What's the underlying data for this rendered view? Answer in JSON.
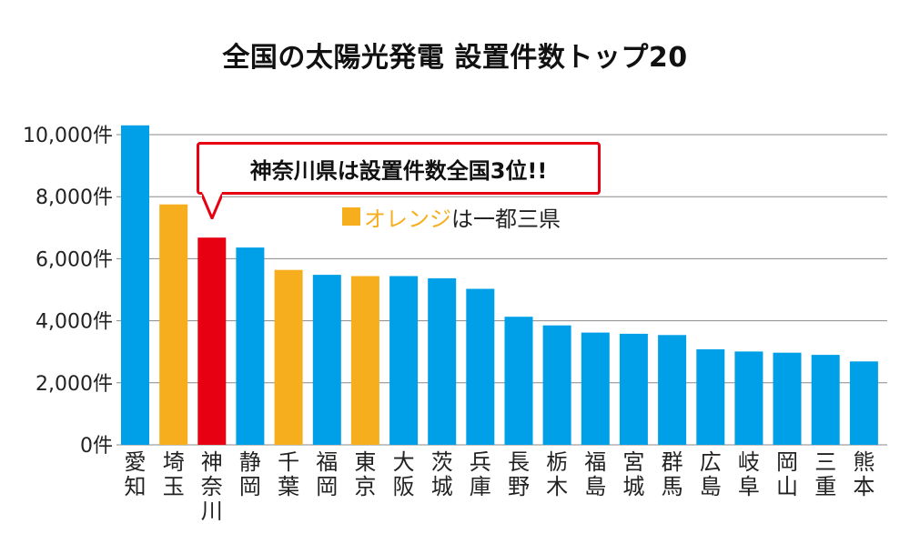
{
  "title": "全国の太陽光発電 設置件数トップ20",
  "callout": {
    "text": "神奈川県は設置件数全国3位!!"
  },
  "legend": {
    "label": "オレンジ",
    "suffix": "は一都三県"
  },
  "colors": {
    "default": "#00a0e9",
    "orange": "#f6ae1f",
    "highlight": "#e60012",
    "grid": "#888888"
  },
  "chart_data": {
    "type": "bar",
    "title": "全国の太陽光発電 設置件数トップ20",
    "xlabel": "",
    "ylabel": "",
    "ylim": [
      0,
      10000
    ],
    "yticks": [
      0,
      2000,
      4000,
      6000,
      8000,
      10000
    ],
    "ytick_labels": [
      "0件",
      "2,000件",
      "4,000件",
      "6,000件",
      "8,000件",
      "10,000件"
    ],
    "grid": true,
    "categories": [
      "愛知",
      "埼玉",
      "神奈川",
      "静岡",
      "千葉",
      "福岡",
      "東京",
      "大阪",
      "茨城",
      "兵庫",
      "長野",
      "栃木",
      "福島",
      "宮城",
      "群馬",
      "広島",
      "岐阜",
      "岡山",
      "三重",
      "熊本"
    ],
    "values": [
      10300,
      7750,
      6680,
      6360,
      5640,
      5480,
      5440,
      5440,
      5370,
      5030,
      4130,
      3850,
      3620,
      3580,
      3540,
      3080,
      3010,
      2970,
      2900,
      2690
    ],
    "bar_colors": [
      "default",
      "orange",
      "highlight",
      "default",
      "orange",
      "default",
      "orange",
      "default",
      "default",
      "default",
      "default",
      "default",
      "default",
      "default",
      "default",
      "default",
      "default",
      "default",
      "default",
      "default"
    ]
  }
}
